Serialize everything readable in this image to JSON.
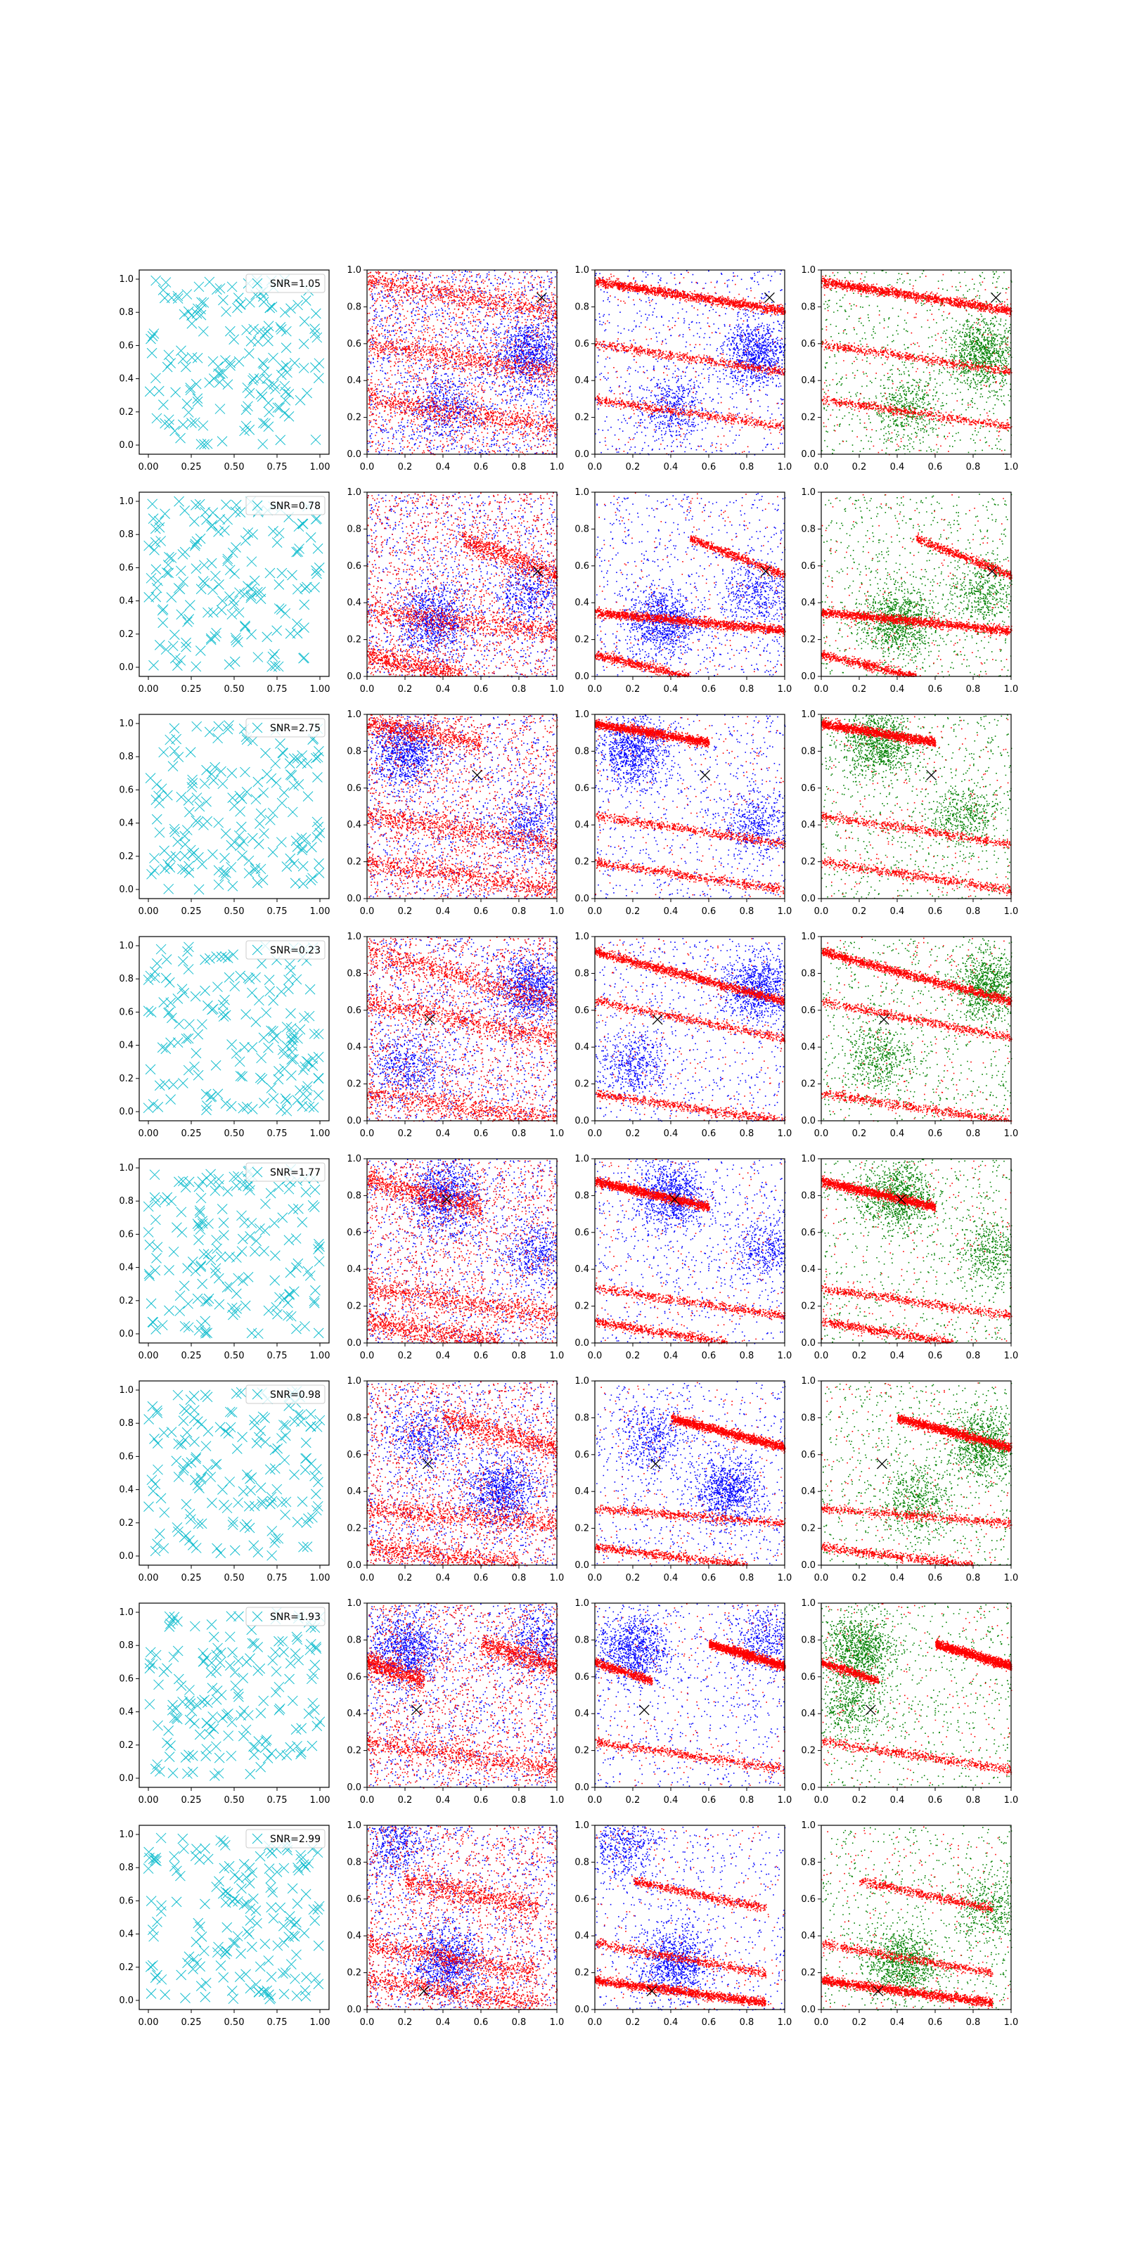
{
  "figure": {
    "columns": [
      "cyan-markers",
      "red-blue",
      "red-blue",
      "red-green"
    ],
    "row_snr_labels": [
      "SNR=1.05",
      "SNR=0.78",
      "SNR=2.75",
      "SNR=0.23",
      "SNR=1.77",
      "SNR=0.98",
      "SNR=1.93",
      "SNR=2.99"
    ]
  },
  "colors": {
    "marker": "#17becf",
    "red": "#ff0000",
    "blue": "#0000ff",
    "green": "#008000",
    "cross": "#000000"
  },
  "axes": {
    "col0_x_ticks": [
      "0.00",
      "0.25",
      "0.50",
      "0.75",
      "1.00"
    ],
    "col0_y_ticks": [
      "0.0",
      "0.2",
      "0.4",
      "0.6",
      "0.8",
      "1.0"
    ],
    "col_x_ticks": [
      "0.0",
      "0.2",
      "0.4",
      "0.6",
      "0.8",
      "1.0"
    ],
    "col_y_ticks": [
      "0.0",
      "0.2",
      "0.4",
      "0.6",
      "0.8",
      "1.0"
    ]
  },
  "chart_data": {
    "type": "scatter",
    "grid": false,
    "legend_placement": "top-right",
    "xlim": [
      0,
      1
    ],
    "ylim": [
      0,
      1
    ],
    "rows": [
      {
        "snr": "SNR=1.05",
        "marker": [
          0.92,
          0.85
        ],
        "red_bands": [
          [
            0.0,
            0.94,
            1.0,
            0.78
          ],
          [
            0.0,
            0.6,
            1.0,
            0.45
          ],
          [
            0.0,
            0.3,
            1.0,
            0.15
          ]
        ],
        "blue_blobs": [
          [
            0.85,
            0.55
          ],
          [
            0.4,
            0.25
          ]
        ],
        "green_blobs": [
          [
            0.85,
            0.55
          ],
          [
            0.45,
            0.25
          ]
        ]
      },
      {
        "snr": "SNR=0.78",
        "marker": [
          0.9,
          0.57
        ],
        "red_bands": [
          [
            0.0,
            0.35,
            1.0,
            0.25
          ],
          [
            0.0,
            0.12,
            0.5,
            0.0
          ],
          [
            0.5,
            0.75,
            1.0,
            0.55
          ]
        ],
        "blue_blobs": [
          [
            0.35,
            0.3
          ],
          [
            0.85,
            0.45
          ]
        ],
        "green_blobs": [
          [
            0.4,
            0.3
          ],
          [
            0.85,
            0.45
          ]
        ]
      },
      {
        "snr": "SNR=2.75",
        "marker": [
          0.58,
          0.67
        ],
        "red_bands": [
          [
            0.0,
            0.95,
            0.6,
            0.85
          ],
          [
            0.0,
            0.45,
            1.0,
            0.3
          ],
          [
            0.0,
            0.2,
            1.0,
            0.05
          ]
        ],
        "blue_blobs": [
          [
            0.2,
            0.8
          ],
          [
            0.85,
            0.4
          ]
        ],
        "green_blobs": [
          [
            0.3,
            0.85
          ],
          [
            0.75,
            0.45
          ]
        ]
      },
      {
        "snr": "SNR=0.23",
        "marker": [
          0.33,
          0.55
        ],
        "red_bands": [
          [
            0.0,
            0.92,
            1.0,
            0.65
          ],
          [
            0.0,
            0.65,
            1.0,
            0.45
          ],
          [
            0.0,
            0.15,
            1.0,
            0.0
          ]
        ],
        "blue_blobs": [
          [
            0.85,
            0.72
          ],
          [
            0.2,
            0.3
          ]
        ],
        "green_blobs": [
          [
            0.88,
            0.73
          ],
          [
            0.3,
            0.35
          ]
        ]
      },
      {
        "snr": "SNR=1.77",
        "marker": [
          0.42,
          0.78
        ],
        "red_bands": [
          [
            0.0,
            0.88,
            0.6,
            0.74
          ],
          [
            0.0,
            0.3,
            1.0,
            0.15
          ],
          [
            0.0,
            0.12,
            0.7,
            0.0
          ]
        ],
        "blue_blobs": [
          [
            0.4,
            0.8
          ],
          [
            0.9,
            0.5
          ]
        ],
        "green_blobs": [
          [
            0.4,
            0.8
          ],
          [
            0.9,
            0.5
          ]
        ]
      },
      {
        "snr": "SNR=0.98",
        "marker": [
          0.32,
          0.55
        ],
        "red_bands": [
          [
            0.4,
            0.8,
            1.0,
            0.64
          ],
          [
            0.0,
            0.31,
            1.0,
            0.23
          ],
          [
            0.0,
            0.1,
            0.8,
            0.0
          ]
        ],
        "blue_blobs": [
          [
            0.7,
            0.4
          ],
          [
            0.3,
            0.7
          ]
        ],
        "green_blobs": [
          [
            0.85,
            0.65
          ],
          [
            0.5,
            0.35
          ]
        ]
      },
      {
        "snr": "SNR=1.93",
        "marker": [
          0.26,
          0.42
        ],
        "red_bands": [
          [
            0.6,
            0.78,
            1.0,
            0.66
          ],
          [
            0.0,
            0.68,
            0.3,
            0.58
          ],
          [
            0.0,
            0.25,
            1.0,
            0.1
          ]
        ],
        "blue_blobs": [
          [
            0.2,
            0.75
          ],
          [
            0.9,
            0.8
          ]
        ],
        "green_blobs": [
          [
            0.2,
            0.75
          ],
          [
            0.15,
            0.45
          ]
        ]
      },
      {
        "snr": "SNR=2.99",
        "marker": [
          0.3,
          0.1
        ],
        "red_bands": [
          [
            0.0,
            0.16,
            0.9,
            0.04
          ],
          [
            0.0,
            0.36,
            0.9,
            0.2
          ],
          [
            0.2,
            0.7,
            0.9,
            0.55
          ]
        ],
        "blue_blobs": [
          [
            0.42,
            0.25
          ],
          [
            0.15,
            0.9
          ]
        ],
        "green_blobs": [
          [
            0.42,
            0.25
          ],
          [
            0.9,
            0.55
          ]
        ]
      }
    ]
  }
}
